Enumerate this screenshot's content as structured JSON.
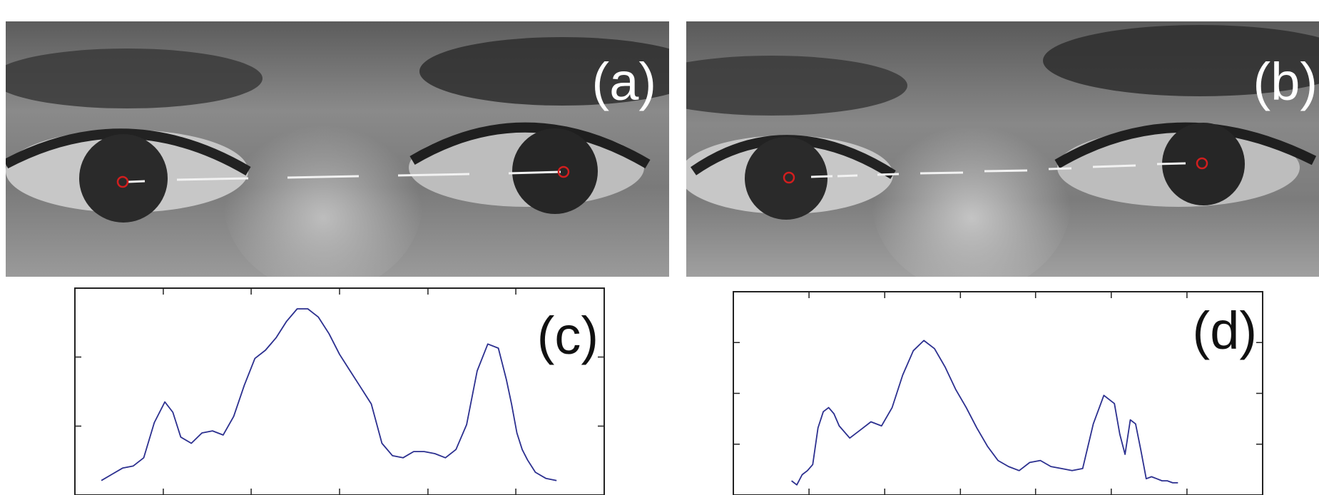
{
  "panels": {
    "a": {
      "label": "(a)"
    },
    "b": {
      "label": "(b)"
    },
    "c": {
      "label": "(c)"
    },
    "d": {
      "label": "(d)"
    }
  },
  "colors": {
    "profile_line": "#2b2f8f",
    "pupil_marker": "#d21e1e",
    "scan_dash": "#f2f2f2",
    "axes": "#222222"
  },
  "chart_data": [
    {
      "panel": "c",
      "type": "line",
      "title": "",
      "xlabel": "",
      "ylabel": "",
      "xlim": [
        0,
        100
      ],
      "ylim": [
        0,
        100
      ],
      "xticks": [
        16.7,
        33.3,
        50,
        66.7,
        83.3
      ],
      "yticks": [
        33.3,
        66.7
      ],
      "series": [
        {
          "x": [
            5,
            7,
            9,
            11,
            13,
            15,
            17,
            18.5,
            20,
            22,
            24,
            26,
            28,
            30,
            32,
            34,
            36,
            38,
            40,
            42,
            43,
            44,
            45,
            46,
            48,
            50,
            52,
            54,
            56,
            58,
            60,
            62,
            64,
            66,
            68,
            70,
            72,
            74,
            76,
            78,
            80,
            81.5,
            82.5,
            83.5,
            84.5,
            85.5,
            87,
            89,
            91
          ],
          "y": [
            7,
            10,
            13,
            14,
            18,
            35,
            45,
            40,
            28,
            25,
            30,
            31,
            29,
            38,
            53,
            66,
            70,
            76,
            84,
            90,
            90,
            90,
            88,
            86,
            78,
            68,
            60,
            52,
            44,
            25,
            19,
            18,
            21,
            21,
            20,
            18,
            22,
            34,
            60,
            73,
            71,
            56,
            44,
            30,
            22,
            17,
            11,
            8,
            7
          ]
        }
      ]
    },
    {
      "panel": "d",
      "type": "line",
      "title": "",
      "xlabel": "",
      "ylabel": "",
      "xlim": [
        0,
        100
      ],
      "ylim": [
        0,
        100
      ],
      "xticks": [
        14.3,
        28.6,
        42.9,
        57.1,
        71.4,
        85.7
      ],
      "yticks": [
        25,
        50,
        75
      ],
      "series": [
        {
          "x": [
            11,
            12,
            13,
            14,
            15,
            16,
            17,
            18,
            19,
            20,
            22,
            24,
            26,
            28,
            30,
            32,
            34,
            36,
            38,
            40,
            42,
            44,
            46,
            48,
            50,
            52,
            54,
            56,
            58,
            60,
            62,
            64,
            66,
            68,
            70,
            72,
            73,
            74,
            75,
            76,
            77,
            78,
            79,
            80,
            81,
            82,
            83,
            84
          ],
          "y": [
            7,
            5,
            10,
            12,
            15,
            33,
            41,
            43,
            40,
            34,
            28,
            32,
            36,
            34,
            43,
            59,
            71,
            76,
            72,
            63,
            52,
            43,
            33,
            24,
            17,
            14,
            12,
            16,
            17,
            14,
            13,
            12,
            13,
            35,
            49,
            45,
            30,
            20,
            37,
            35,
            22,
            8,
            9,
            8,
            7,
            7,
            6,
            6
          ]
        }
      ]
    }
  ]
}
